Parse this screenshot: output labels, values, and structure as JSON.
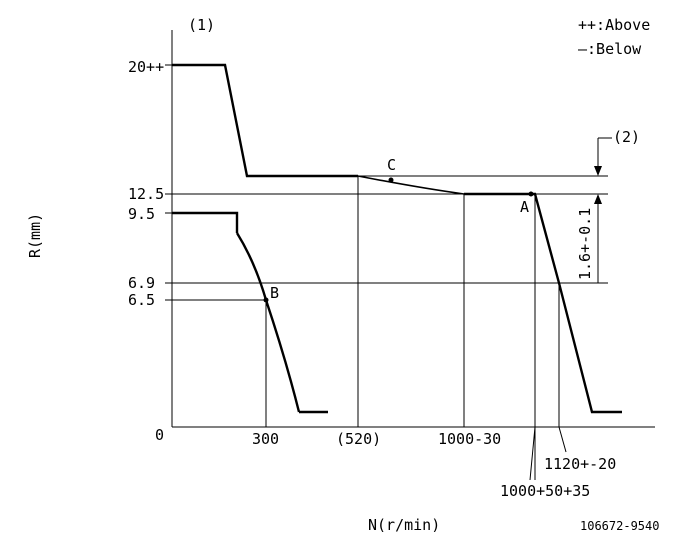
{
  "diagram": {
    "label_1": "(1)",
    "label_2": "(2)",
    "legend": {
      "above": "++:Above",
      "below": "—:Below"
    },
    "y_axis_label": "R(mm)",
    "x_axis_label": "N(r/min)",
    "y_ticks": [
      "20++",
      "12.5",
      "9.5",
      "6.9",
      "6.5",
      "0"
    ],
    "x_ticks": [
      "300",
      "(520)",
      "1000-30"
    ],
    "x_ticks_below": [
      "1120+-20",
      "1000+50+35"
    ],
    "tolerance_label": "1.6+-0.1",
    "points": {
      "a": "A",
      "b": "B",
      "c": "C"
    },
    "part_number": "106672-9540"
  }
}
